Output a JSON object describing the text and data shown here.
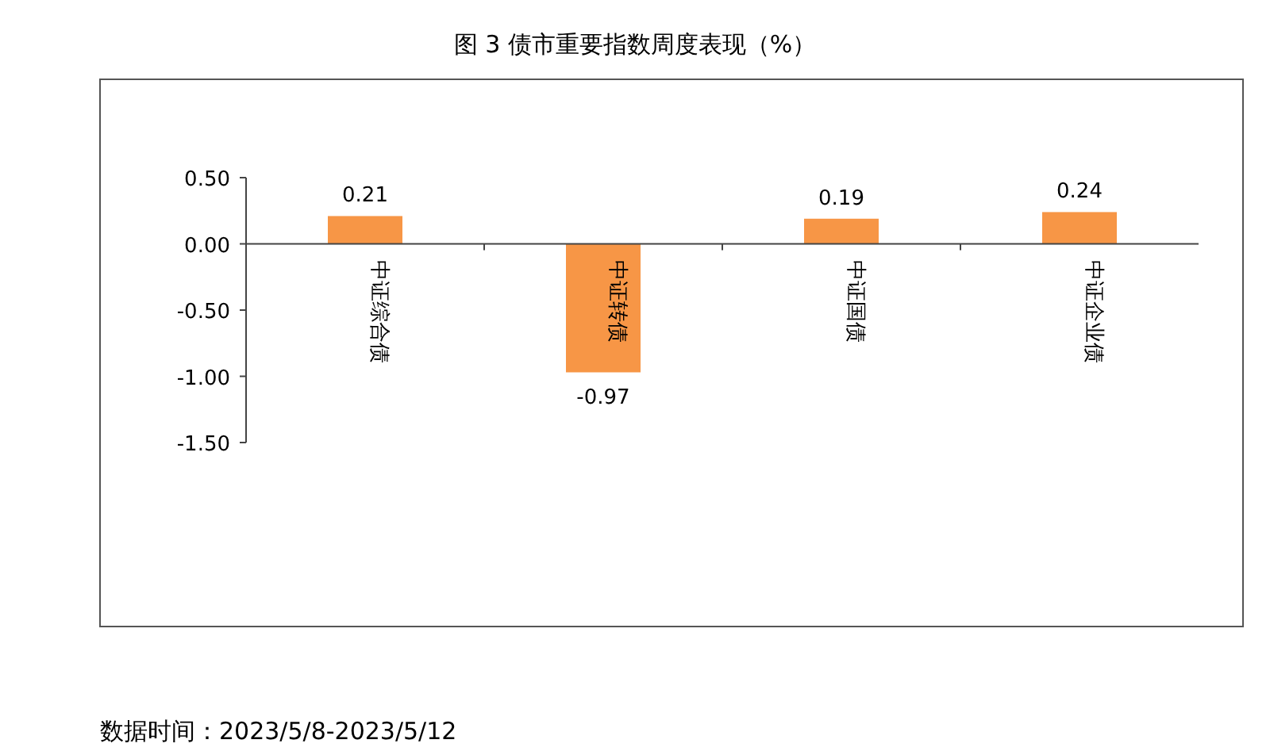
{
  "chart_data": {
    "type": "bar",
    "title": "图 3 债市重要指数周度表现（%）",
    "categories": [
      "中证综合债",
      "中证转债",
      "中证国债",
      "中证企业债"
    ],
    "values": [
      0.21,
      -0.97,
      0.19,
      0.24
    ],
    "color": "#f79646",
    "ylim": [
      -1.5,
      0.5
    ],
    "yticks": [
      {
        "value": 0.5,
        "label": "0.50"
      },
      {
        "value": 0,
        "label": "0.00"
      },
      {
        "value": -0.5,
        "label": "-0.50"
      },
      {
        "value": -1,
        "label": "-1.00"
      },
      {
        "value": -1.5,
        "label": "-1.50"
      }
    ],
    "data_labels": true,
    "grid": false,
    "annotations": [
      "数据时间：2023/5/8-2023/5/12"
    ]
  }
}
